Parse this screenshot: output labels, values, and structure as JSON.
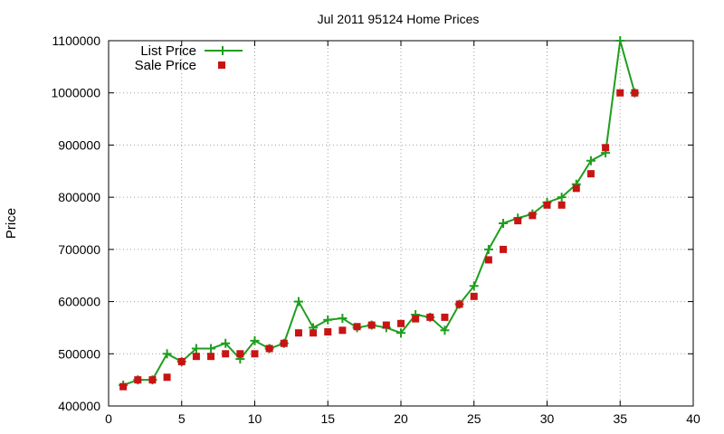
{
  "chart_data": {
    "type": "line",
    "title": "Jul 2011 95124 Home Prices",
    "xlabel": "",
    "ylabel": "Price",
    "xlim": [
      0,
      40
    ],
    "ylim": [
      400000,
      1100000
    ],
    "xticks": [
      "0",
      "5",
      "10",
      "15",
      "20",
      "25",
      "30",
      "35",
      "40"
    ],
    "yticks": [
      "400000",
      "500000",
      "600000",
      "700000",
      "800000",
      "900000",
      "1000000",
      "1100000"
    ],
    "grid": true,
    "legend_position": "top-left",
    "series": [
      {
        "name": "List Price",
        "style": "line-with-plus-markers",
        "color": "#1e9e1e",
        "x": [
          1,
          2,
          3,
          4,
          5,
          6,
          7,
          8,
          9,
          10,
          11,
          12,
          13,
          14,
          15,
          16,
          17,
          18,
          19,
          20,
          21,
          22,
          23,
          24,
          25,
          26,
          27,
          28,
          29,
          30,
          31,
          32,
          33,
          34,
          35,
          36
        ],
        "values": [
          440000,
          450000,
          450000,
          500000,
          485000,
          510000,
          510000,
          520000,
          490000,
          525000,
          510000,
          520000,
          600000,
          550000,
          565000,
          568000,
          550000,
          555000,
          550000,
          540000,
          575000,
          570000,
          545000,
          595000,
          630000,
          700000,
          750000,
          760000,
          768000,
          790000,
          800000,
          825000,
          870000,
          885000,
          1100000,
          1000000
        ]
      },
      {
        "name": "Sale Price",
        "style": "square-markers",
        "color": "#c81414",
        "x": [
          1,
          2,
          3,
          4,
          5,
          6,
          7,
          8,
          9,
          10,
          11,
          12,
          13,
          14,
          15,
          16,
          17,
          18,
          19,
          20,
          21,
          22,
          23,
          24,
          25,
          26,
          27,
          28,
          29,
          30,
          31,
          32,
          33,
          34,
          35,
          36
        ],
        "values": [
          437000,
          450000,
          450000,
          455000,
          485000,
          495000,
          495000,
          500000,
          500000,
          500000,
          510000,
          520000,
          540000,
          540000,
          542000,
          545000,
          552000,
          555000,
          555000,
          558000,
          567000,
          570000,
          570000,
          595000,
          610000,
          680000,
          700000,
          755000,
          765000,
          785000,
          785000,
          817000,
          845000,
          895000,
          1000000,
          1000000
        ]
      }
    ]
  }
}
